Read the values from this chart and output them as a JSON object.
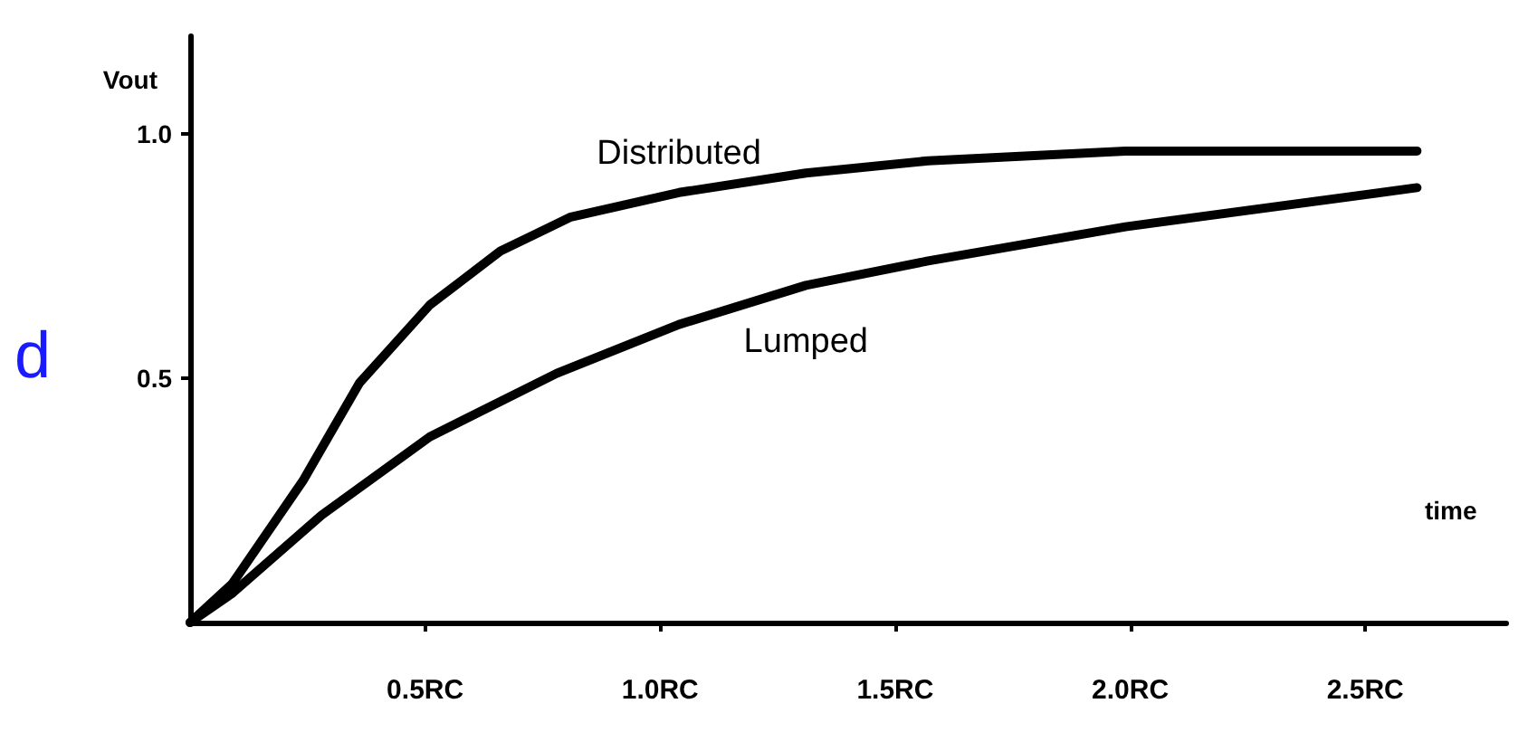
{
  "chart_data": {
    "type": "line",
    "xlabel": "time",
    "ylabel": "Vout",
    "xlim": [
      0,
      2.8
    ],
    "ylim": [
      0,
      1.2
    ],
    "xticks": [
      {
        "value": 0.5,
        "label": "0.5RC"
      },
      {
        "value": 1,
        "label": "1.0RC"
      },
      {
        "value": 1.5,
        "label": "1.5RC"
      },
      {
        "value": 2,
        "label": "2.0RC"
      },
      {
        "value": 2.5,
        "label": "2.5RC"
      }
    ],
    "yticks": [
      0.5,
      {
        "value": 1,
        "label": "1.0"
      }
    ],
    "grid": false,
    "legend": false,
    "marker": "none",
    "line_style": "solid",
    "annotations": [
      "d"
    ],
    "series": [
      {
        "name": "Distributed",
        "color": "#000000",
        "x": [
          0,
          0.09,
          0.24,
          0.36,
          0.51,
          0.66,
          0.81,
          1.04,
          1.31,
          1.57,
          1.99,
          2.61
        ],
        "values": [
          0,
          0.08,
          0.29,
          0.49,
          0.65,
          0.76,
          0.83,
          0.88,
          0.92,
          0.945,
          0.965,
          0.965
        ]
      },
      {
        "name": "Lumped",
        "color": "#000000",
        "x": [
          0,
          0.09,
          0.28,
          0.51,
          0.78,
          1.04,
          1.31,
          1.57,
          1.99,
          2.61
        ],
        "values": [
          0,
          0.06,
          0.22,
          0.38,
          0.51,
          0.61,
          0.69,
          0.74,
          0.81,
          0.89
        ]
      }
    ]
  }
}
